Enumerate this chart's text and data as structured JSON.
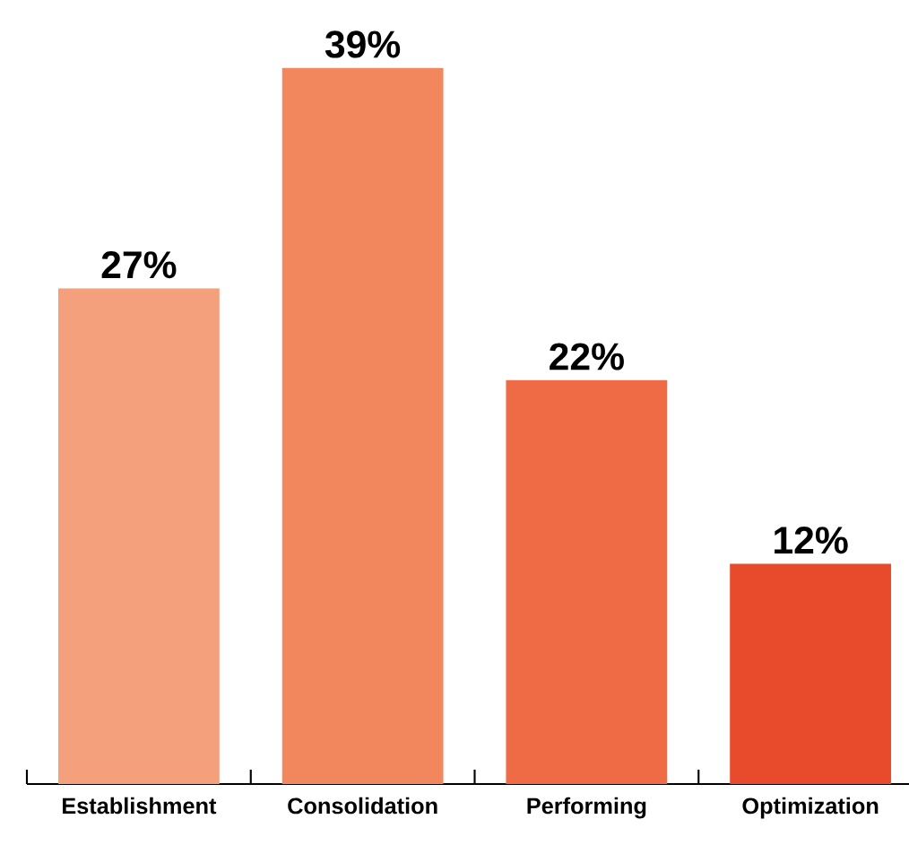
{
  "chart_data": {
    "type": "bar",
    "categories": [
      "Establishment",
      "Consolidation",
      "Performing",
      "Optimization"
    ],
    "values": [
      27,
      39,
      22,
      12
    ],
    "value_labels": [
      "27%",
      "39%",
      "22%",
      "12%"
    ],
    "colors": [
      "#f4a07c",
      "#f2875e",
      "#ee6b45",
      "#e84a2c"
    ]
  }
}
